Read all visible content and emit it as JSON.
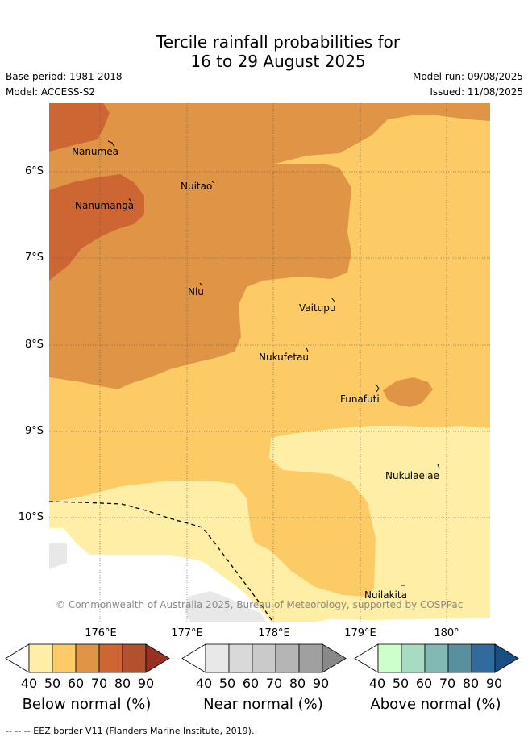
{
  "title_line1": "Tercile rainfall probabilities for",
  "title_line2": "16 to 29 August 2025",
  "base_period": "Base period: 1981-2018",
  "model": "Model: ACCESS-S2",
  "model_run": "Model run: 09/08/2025",
  "issued": "Issued: 11/08/2025",
  "latitudes": [
    "6°S",
    "7°S",
    "8°S",
    "9°S",
    "10°S"
  ],
  "longitudes": [
    "176°E",
    "177°E",
    "178°E",
    "179°E",
    "180°"
  ],
  "places": [
    "Nanumea",
    "Nuitao",
    "Nanumanga",
    "Niu",
    "Vaitupu",
    "Nukufetau",
    "Funafuti",
    "Nukulaelae",
    "Nuilakita"
  ],
  "copyright": "© Commonwealth of Australia 2025, Bureau of Meteorology, supported by COSPPac",
  "colorbars": [
    {
      "label": "Below normal (%)",
      "ticks": [
        "40",
        "50",
        "60",
        "70",
        "80",
        "90"
      ],
      "colors": [
        "#ffeea5",
        "#fdcb66",
        "#e09445",
        "#cd6632",
        "#b35030",
        "#993025"
      ]
    },
    {
      "label": "Near normal (%)",
      "ticks": [
        "40",
        "50",
        "60",
        "70",
        "80",
        "90"
      ],
      "colors": [
        "#e8e8e8",
        "#d9d9d9",
        "#cacaca",
        "#b5b5b5",
        "#a0a0a0",
        "#888888"
      ]
    },
    {
      "label": "Above normal (%)",
      "ticks": [
        "40",
        "50",
        "60",
        "70",
        "80",
        "90"
      ],
      "colors": [
        "#ccffcc",
        "#a8dcc0",
        "#82b9b4",
        "#5890a0",
        "#336a9e",
        "#194f85"
      ]
    }
  ],
  "footnote": "--  --  -- EEZ border V11 (Flanders Marine Institute, 2019).",
  "colors": {
    "below_40": "#ffeea5",
    "below_50": "#fdcb66",
    "below_60": "#e09445",
    "below_70": "#cd6632",
    "near_40": "#e8e8e8"
  }
}
